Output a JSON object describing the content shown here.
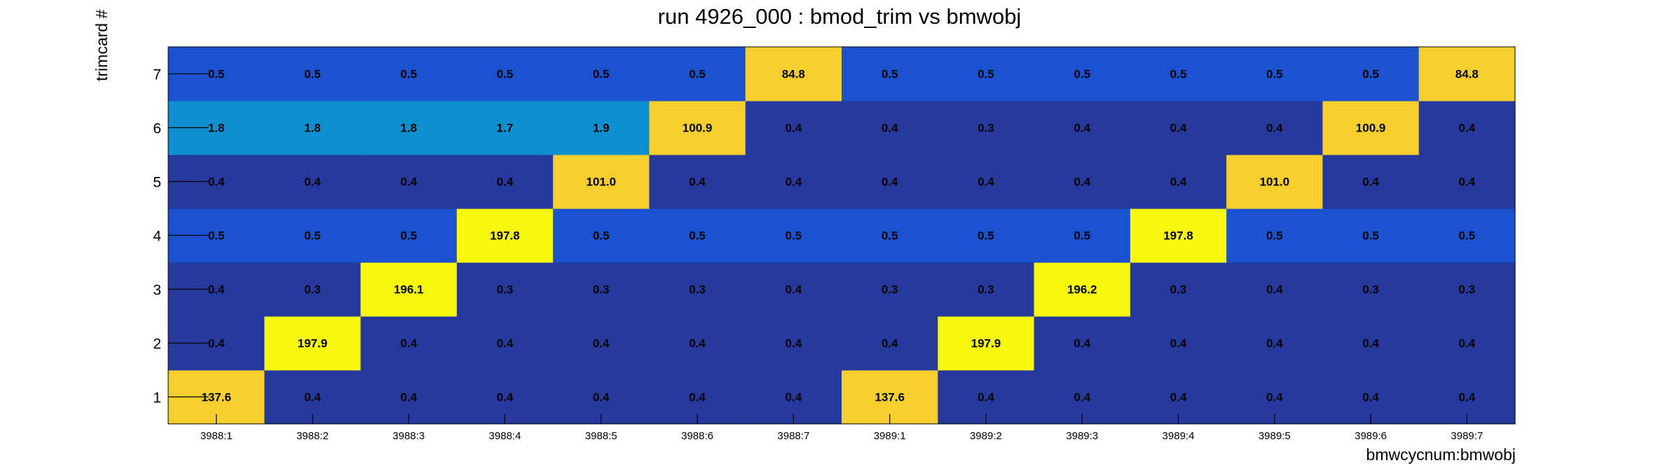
{
  "chart_data": {
    "type": "heatmap",
    "title": "run 4926_000 : bmod_trim vs bmwobj",
    "xlabel": "bmwcycnum:bmwobj",
    "ylabel": "trimcard #",
    "x_categories": [
      "3988:1",
      "3988:2",
      "3988:3",
      "3988:4",
      "3988:5",
      "3988:6",
      "3988:7",
      "3989:1",
      "3989:2",
      "3989:3",
      "3989:4",
      "3989:5",
      "3989:6",
      "3989:7"
    ],
    "y_categories": [
      "1",
      "2",
      "3",
      "4",
      "5",
      "6",
      "7"
    ],
    "values": [
      [
        "137.6",
        "0.4",
        "0.4",
        "0.4",
        "0.4",
        "0.4",
        "0.4",
        "137.6",
        "0.4",
        "0.4",
        "0.4",
        "0.4",
        "0.4",
        "0.4"
      ],
      [
        "0.4",
        "197.9",
        "0.4",
        "0.4",
        "0.4",
        "0.4",
        "0.4",
        "0.4",
        "197.9",
        "0.4",
        "0.4",
        "0.4",
        "0.4",
        "0.4"
      ],
      [
        "0.4",
        "0.3",
        "196.1",
        "0.3",
        "0.3",
        "0.3",
        "0.4",
        "0.3",
        "0.3",
        "196.2",
        "0.3",
        "0.4",
        "0.3",
        "0.3"
      ],
      [
        "0.5",
        "0.5",
        "0.5",
        "197.8",
        "0.5",
        "0.5",
        "0.5",
        "0.5",
        "0.5",
        "0.5",
        "197.8",
        "0.5",
        "0.5",
        "0.5"
      ],
      [
        "0.4",
        "0.4",
        "0.4",
        "0.4",
        "101.0",
        "0.4",
        "0.4",
        "0.4",
        "0.4",
        "0.4",
        "0.4",
        "101.0",
        "0.4",
        "0.4"
      ],
      [
        "1.8",
        "1.8",
        "1.8",
        "1.7",
        "1.9",
        "100.9",
        "0.4",
        "0.4",
        "0.3",
        "0.4",
        "0.4",
        "0.4",
        "100.9",
        "0.4"
      ],
      [
        "0.5",
        "0.5",
        "0.5",
        "0.5",
        "0.5",
        "0.5",
        "84.8",
        "0.5",
        "0.5",
        "0.5",
        "0.5",
        "0.5",
        "0.5",
        "84.8"
      ]
    ],
    "grid": false,
    "legend": "none",
    "palette": {
      "low": "#263a9e",
      "low_mid": "#1b52d0",
      "mid": "#0d8fd0",
      "high_mid": "#f7cf2c",
      "high": "#f7f70d"
    }
  }
}
